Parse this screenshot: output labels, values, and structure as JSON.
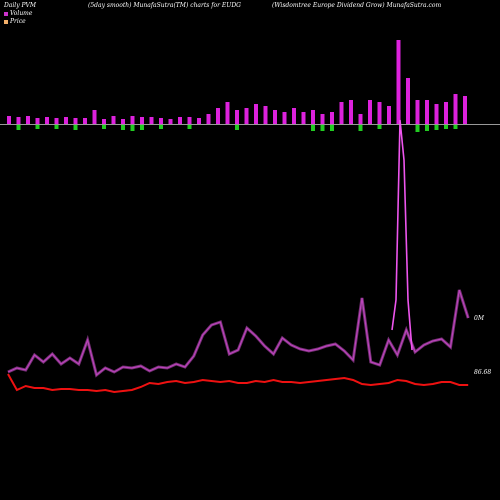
{
  "header": {
    "left": "Daily PVM",
    "mid": "(5day smooth) MunafaSutra(TM) charts for EUDG",
    "right": "(Wisdomtree   Europe   Dividend Grow) MunafaSutra.com"
  },
  "legend": [
    {
      "label": "Volume",
      "color": "#cc33cc"
    },
    {
      "label": "Price",
      "color": "#f4b06a"
    }
  ],
  "colors": {
    "volume_up": "#dd22dd",
    "volume_down": "#22cc22",
    "pvm_line": "#bb44bb",
    "price_line": "#ee1111",
    "baseline": "#999999"
  },
  "chart_data": [
    {
      "type": "bar",
      "title": "Volume",
      "bar_heights": [
        -8,
        -7,
        -8,
        -6,
        -7,
        -6,
        -7,
        -6,
        -6,
        -14,
        -5,
        -8,
        -5,
        -8,
        -7,
        -7,
        -6,
        -5,
        -7,
        -7,
        -6,
        -10,
        -16,
        -22,
        -14,
        -16,
        -20,
        -18,
        -14,
        -12,
        -16,
        -12,
        -14,
        -10,
        -12,
        -22,
        -24,
        -10,
        -24,
        -22,
        -18,
        -84,
        -46,
        -24,
        -24,
        -20,
        -22,
        -30,
        -28
      ],
      "bar_signs": [
        1,
        -1,
        1,
        -1,
        1,
        -1,
        1,
        -1,
        1,
        1,
        -1,
        1,
        -1,
        -1,
        -1,
        1,
        -1,
        1,
        1,
        -1,
        1,
        1,
        1,
        1,
        -1,
        1,
        1,
        1,
        1,
        1,
        1,
        1,
        -1,
        -1,
        -1,
        1,
        1,
        -1,
        1,
        -1,
        1,
        1,
        1,
        -1,
        -1,
        -1,
        -1,
        -1,
        1
      ],
      "down_depths": [
        0,
        5,
        0,
        4,
        0,
        4,
        0,
        5,
        0,
        0,
        4,
        0,
        5,
        6,
        5,
        0,
        4,
        0,
        0,
        4,
        0,
        0,
        0,
        0,
        5,
        0,
        0,
        0,
        0,
        0,
        0,
        0,
        6,
        6,
        6,
        0,
        0,
        6,
        0,
        4,
        0,
        0,
        0,
        7,
        6,
        5,
        4,
        4,
        0
      ]
    },
    {
      "type": "line",
      "series": [
        {
          "name": "",
          "values": [
            372,
            368,
            370,
            355,
            362,
            354,
            364,
            358,
            364,
            340,
            375,
            368,
            372,
            367,
            368,
            366,
            371,
            367,
            368,
            364,
            367,
            356,
            335,
            325,
            322,
            354,
            350,
            328,
            336,
            346,
            354,
            338,
            345,
            349,
            351,
            349,
            346,
            344,
            351,
            360,
            298,
            362,
            365,
            340,
            355,
            330,
            352,
            345,
            341,
            339,
            347,
            290,
            318
          ]
        },
        {
          "name": "",
          "values": [
            374,
            390,
            386,
            388,
            388,
            390,
            389,
            389,
            390,
            390,
            391,
            390,
            392,
            391,
            390,
            387,
            383,
            384,
            382,
            381,
            383,
            382,
            380,
            381,
            382,
            381,
            383,
            383,
            381,
            382,
            380,
            382,
            382,
            383,
            382,
            381,
            380,
            379,
            378,
            380,
            384,
            385,
            384,
            383,
            380,
            381,
            384,
            385,
            384,
            382,
            382,
            385,
            385
          ]
        }
      ],
      "annotations": [
        "0M",
        "86.68"
      ]
    }
  ]
}
